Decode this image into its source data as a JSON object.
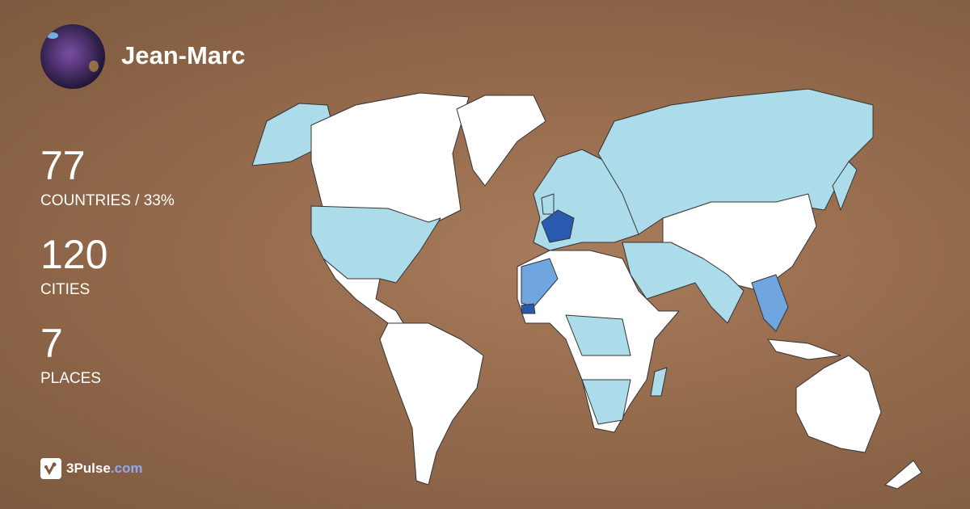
{
  "profile": {
    "name": "Jean-Marc"
  },
  "stats": [
    {
      "value": "77",
      "label": "COUNTRIES / 33%"
    },
    {
      "value": "120",
      "label": "CITIES"
    },
    {
      "value": "7",
      "label": "PLACES"
    }
  ],
  "brand": {
    "name": "3Pulse",
    ".com": ".com",
    "icon": "pulse-logo-icon"
  },
  "map_colors": {
    "unvisited": "#ffffff",
    "visited": "#acdcea",
    "frequent": "#6fa6e0",
    "most": "#2a5ab0"
  }
}
